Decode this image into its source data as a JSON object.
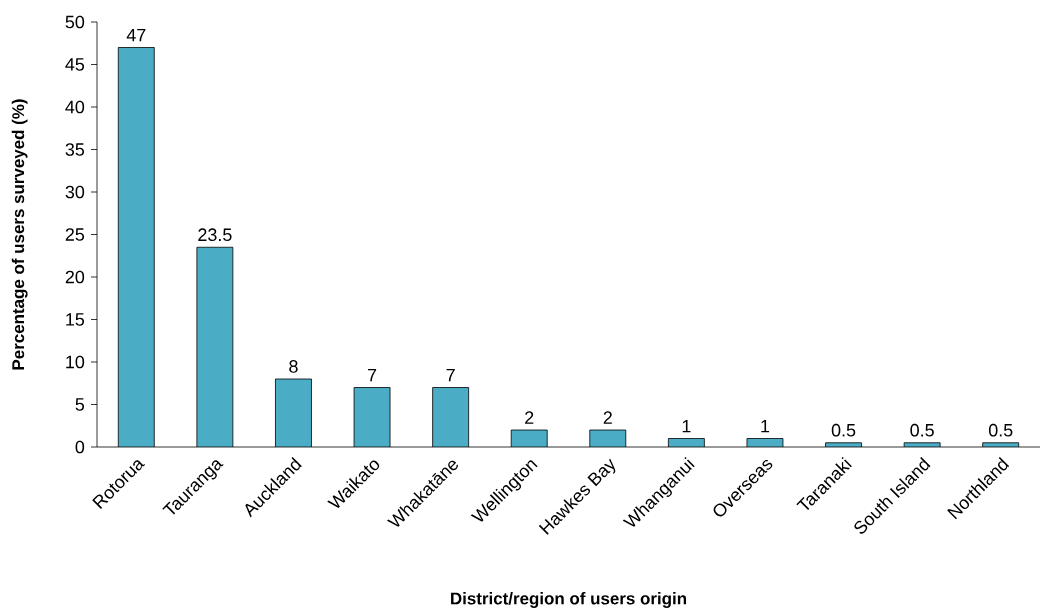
{
  "chart_data": {
    "type": "bar",
    "xlabel": "District/region of users origin",
    "ylabel": "Percentage of users surveyed (%)",
    "categories": [
      "Rotorua",
      "Tauranga",
      "Auckland",
      "Waikato",
      "Whakatāne",
      "Wellington",
      "Hawkes Bay",
      "Whanganui",
      "Overseas",
      "Taranaki",
      "South Island",
      "Northland"
    ],
    "values": [
      47,
      23.5,
      8,
      7,
      7,
      2,
      2,
      1,
      1,
      0.5,
      0.5,
      0.5
    ],
    "color": "#4bacc6",
    "ylim": [
      0,
      50
    ],
    "yticks": [
      0,
      5,
      10,
      15,
      20,
      25,
      30,
      35,
      40,
      45,
      50
    ],
    "data_labels": true,
    "grid": false
  }
}
